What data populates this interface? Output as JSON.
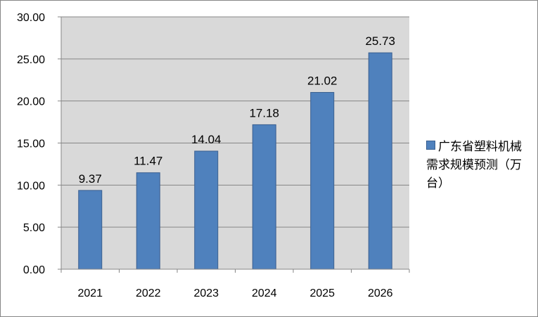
{
  "chart_data": {
    "type": "bar",
    "categories": [
      "2021",
      "2022",
      "2023",
      "2024",
      "2025",
      "2026"
    ],
    "series": [
      {
        "name": "广东省塑料机械需求规模预测（万台）",
        "values": [
          9.37,
          11.47,
          14.04,
          17.18,
          21.02,
          25.73
        ],
        "color": "#4F81BD"
      }
    ],
    "data_labels": [
      "9.37",
      "11.47",
      "14.04",
      "17.18",
      "21.02",
      "25.73"
    ],
    "y_ticks": [
      "0.00",
      "5.00",
      "10.00",
      "15.00",
      "20.00",
      "25.00",
      "30.00"
    ],
    "ylim": [
      0,
      30
    ],
    "grid": true,
    "legend_position": "right",
    "plot_background": "#D9D9D9"
  }
}
